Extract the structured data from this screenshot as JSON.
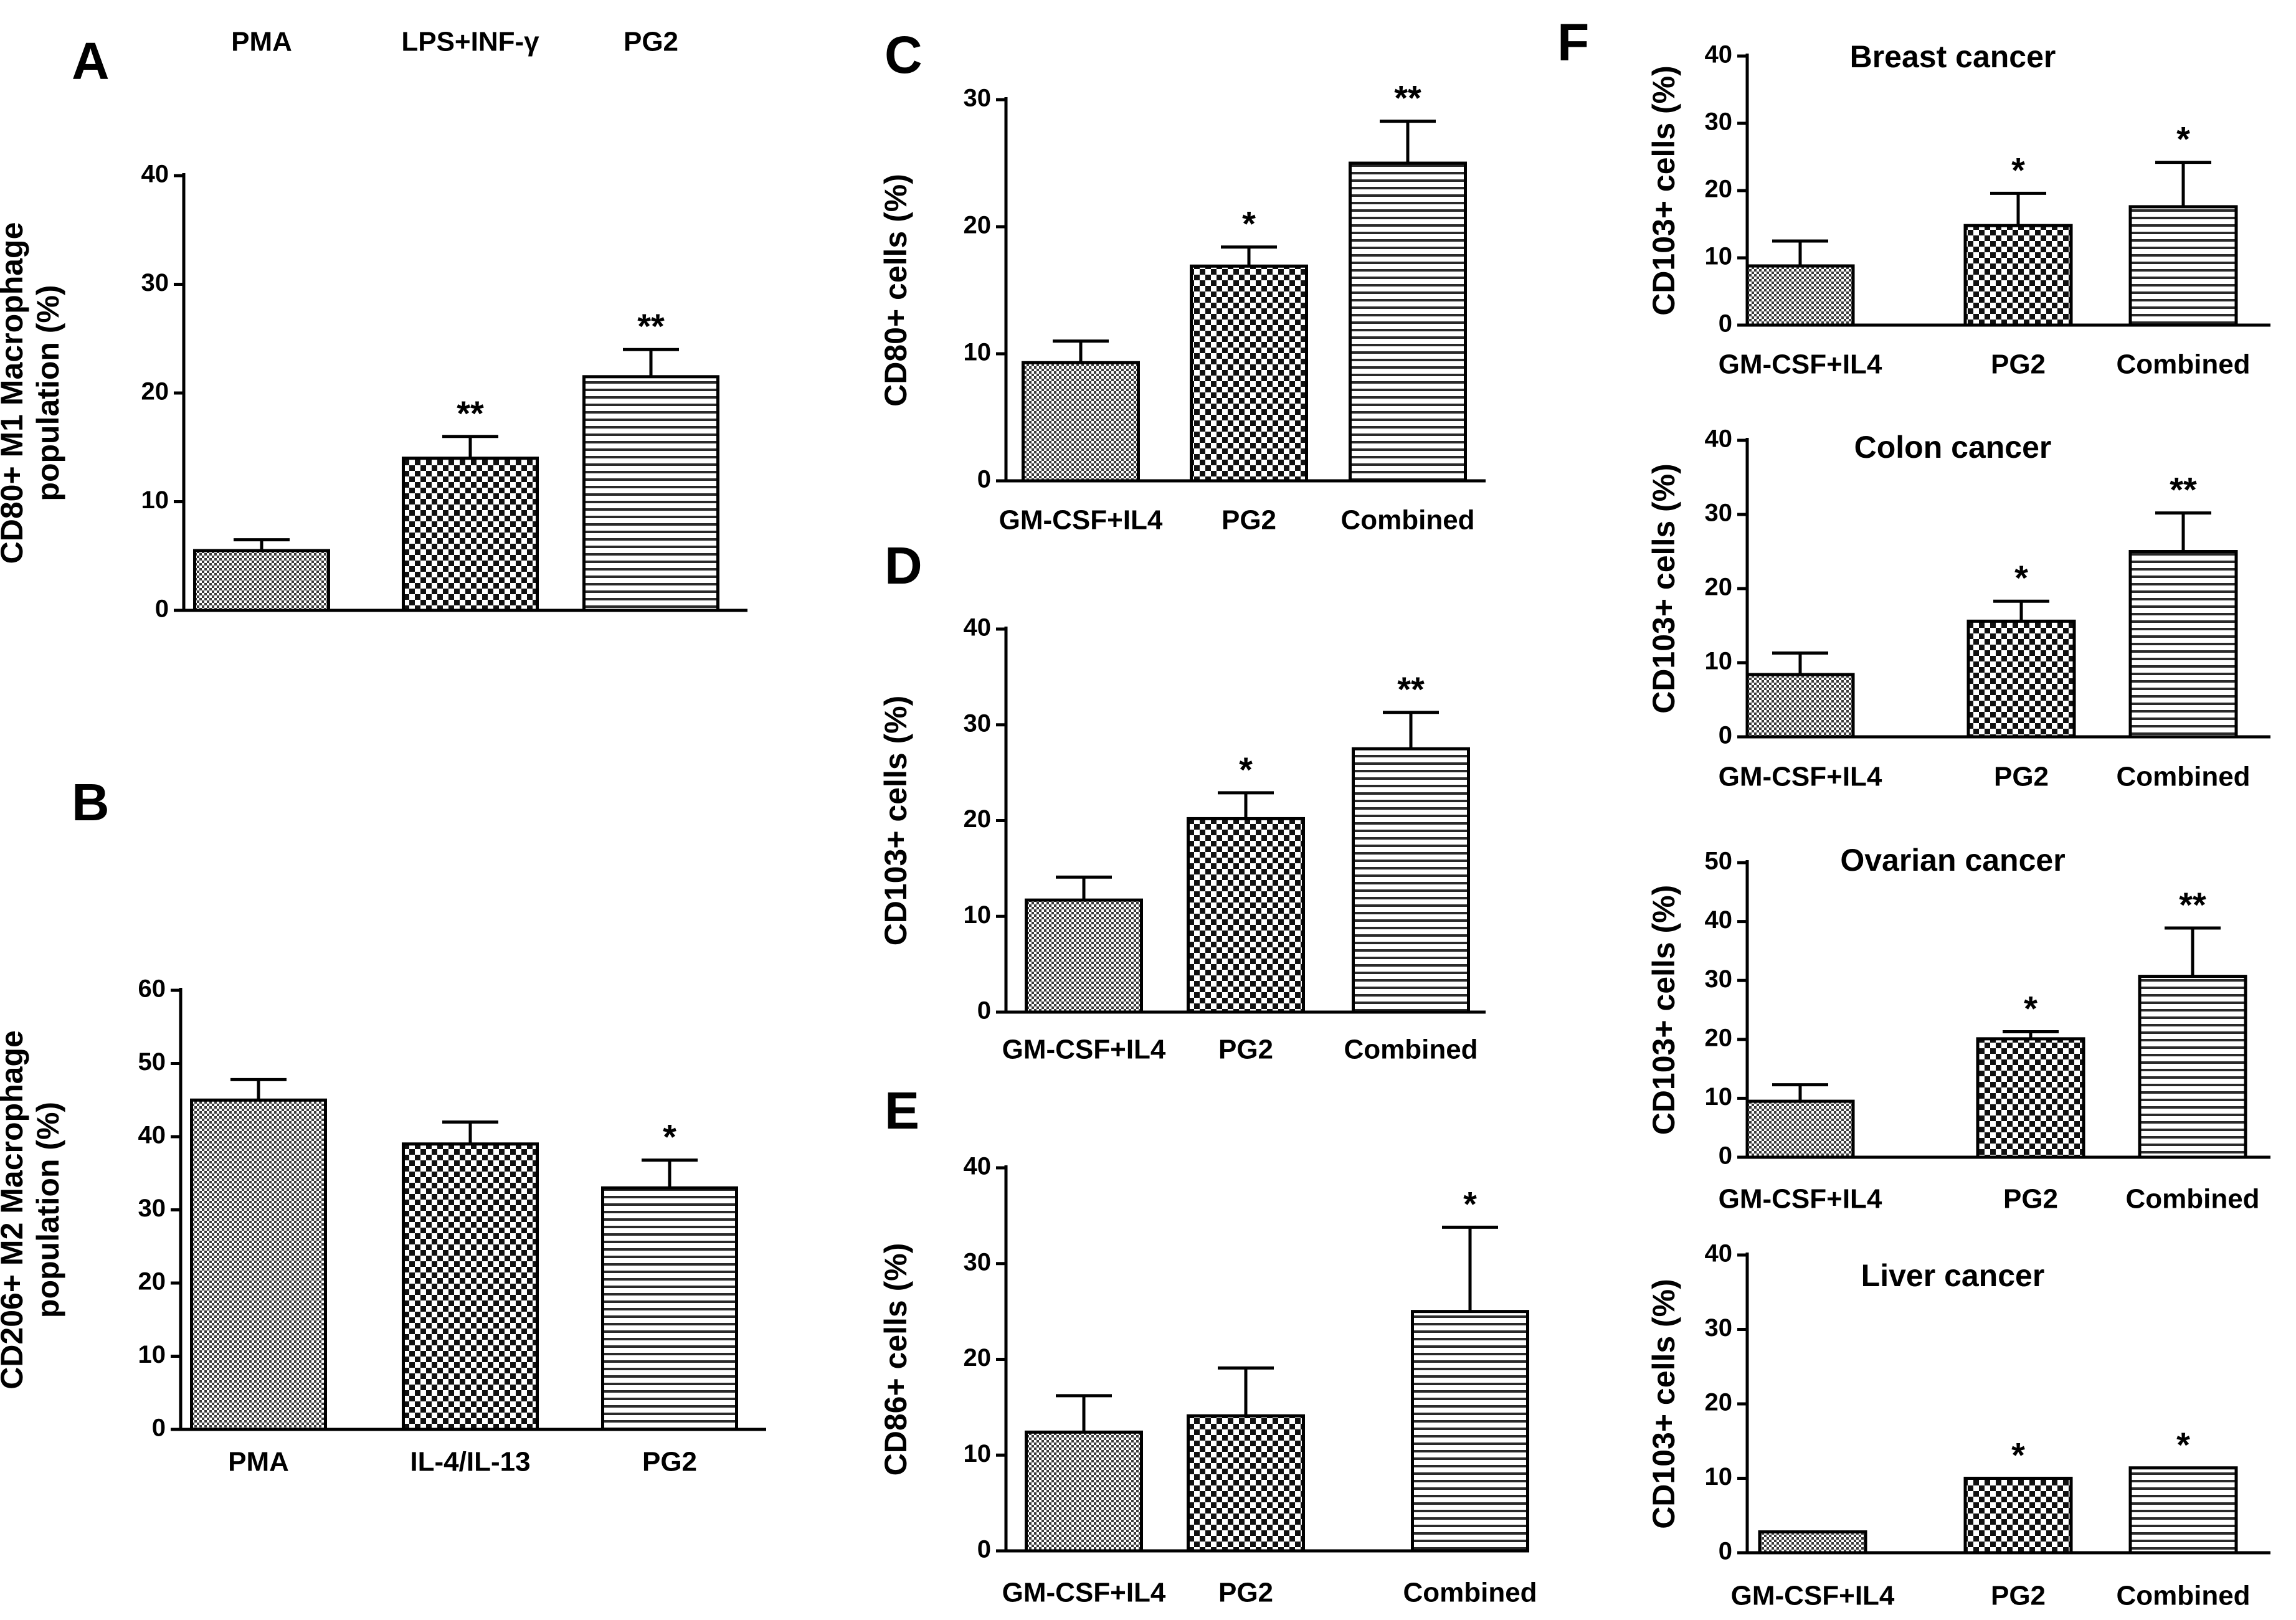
{
  "chart_data": [
    {
      "panel": "A",
      "type": "bar",
      "title": "",
      "ylabel_lines": [
        "CD80+ M1 Macrophage",
        "population (%)"
      ],
      "categories": [
        "PMA",
        "LPS+INF-γ",
        "PG2"
      ],
      "values": [
        5.5,
        14,
        21.5
      ],
      "errors": [
        1,
        2,
        2.5
      ],
      "significance": [
        "",
        "**",
        "**"
      ],
      "patterns": [
        "fine",
        "check",
        "hline"
      ],
      "ylim": [
        0,
        40
      ],
      "yticks": [
        "0",
        "10",
        "20",
        "30",
        "40"
      ]
    },
    {
      "panel": "B",
      "type": "bar",
      "title": "",
      "ylabel_lines": [
        "CD206+ M2 Macrophage",
        "population (%)"
      ],
      "categories": [
        "PMA",
        "IL-4/IL-13",
        "PG2"
      ],
      "values": [
        45,
        39,
        33
      ],
      "errors": [
        2.8,
        3,
        3.8
      ],
      "significance": [
        "",
        "",
        "*"
      ],
      "patterns": [
        "fine",
        "check",
        "hline"
      ],
      "ylim": [
        0,
        60
      ],
      "yticks": [
        "0",
        "10",
        "20",
        "30",
        "40",
        "50",
        "60"
      ]
    },
    {
      "panel": "C",
      "type": "bar",
      "title": "",
      "ylabel_lines": [
        "CD80+ cells (%)"
      ],
      "categories": [
        "GM-CSF+IL4",
        "PG2",
        "Combined"
      ],
      "values": [
        9.3,
        16.9,
        25
      ],
      "errors": [
        1.7,
        1.5,
        3.3
      ],
      "significance": [
        "",
        "*",
        "**"
      ],
      "patterns": [
        "fine",
        "check",
        "hline"
      ],
      "ylim": [
        0,
        30
      ],
      "yticks": [
        "0",
        "10",
        "20",
        "30"
      ]
    },
    {
      "panel": "D",
      "type": "bar",
      "title": "",
      "ylabel_lines": [
        "CD103+ cells (%)"
      ],
      "categories": [
        "GM-CSF+IL4",
        "PG2",
        "Combined"
      ],
      "values": [
        11.7,
        20.2,
        27.5
      ],
      "errors": [
        2.4,
        2.7,
        3.8
      ],
      "significance": [
        "",
        "*",
        "**"
      ],
      "patterns": [
        "fine",
        "check",
        "hline"
      ],
      "ylim": [
        0,
        40
      ],
      "yticks": [
        "0",
        "10",
        "20",
        "30",
        "40"
      ]
    },
    {
      "panel": "E",
      "type": "bar",
      "title": "",
      "ylabel_lines": [
        "CD86+ cells (%)"
      ],
      "categories": [
        "GM-CSF+IL4",
        "PG2",
        "Combined"
      ],
      "values": [
        12.4,
        14.1,
        25
      ],
      "errors": [
        3.8,
        5,
        8.8
      ],
      "significance": [
        "",
        "",
        "*"
      ],
      "patterns": [
        "fine",
        "check",
        "hline"
      ],
      "ylim": [
        0,
        40
      ],
      "yticks": [
        "0",
        "10",
        "20",
        "30",
        "40"
      ]
    },
    {
      "panel": "F",
      "type": "bar",
      "title": "Breast cancer",
      "ylabel_lines": [
        "CD103+ cells (%)"
      ],
      "categories": [
        "GM-CSF+IL4",
        "PG2",
        "Combined"
      ],
      "values": [
        8.8,
        14.8,
        17.6
      ],
      "errors": [
        3.7,
        4.8,
        6.6
      ],
      "significance": [
        "",
        "*",
        "*"
      ],
      "patterns": [
        "fine",
        "check",
        "hline"
      ],
      "ylim": [
        0,
        40
      ],
      "yticks": [
        "0",
        "10",
        "20",
        "30",
        "40"
      ]
    },
    {
      "panel": "",
      "type": "bar",
      "title": "Colon cancer",
      "ylabel_lines": [
        "CD103+ cells (%)"
      ],
      "categories": [
        "GM-CSF+IL4",
        "PG2",
        "Combined"
      ],
      "values": [
        8.4,
        15.6,
        25
      ],
      "errors": [
        2.9,
        2.7,
        5.2
      ],
      "significance": [
        "",
        "*",
        "**"
      ],
      "patterns": [
        "fine",
        "check",
        "hline"
      ],
      "ylim": [
        0,
        40
      ],
      "yticks": [
        "0",
        "10",
        "20",
        "30",
        "40"
      ]
    },
    {
      "panel": "",
      "type": "bar",
      "title": "Ovarian cancer",
      "ylabel_lines": [
        "CD103+ cells (%)"
      ],
      "categories": [
        "GM-CSF+IL4",
        "PG2",
        "Combined"
      ],
      "values": [
        9.5,
        20.1,
        30.7
      ],
      "errors": [
        2.8,
        1.2,
        8.2
      ],
      "significance": [
        "",
        "*",
        "**"
      ],
      "patterns": [
        "fine",
        "check",
        "hline"
      ],
      "ylim": [
        0,
        50
      ],
      "yticks": [
        "0",
        "10",
        "20",
        "30",
        "40",
        "50"
      ]
    },
    {
      "panel": "",
      "type": "bar",
      "title": "Liver cancer",
      "ylabel_lines": [
        "CD103+ cells (%)"
      ],
      "categories": [
        "GM-CSF+IL4",
        "PG2",
        "Combined"
      ],
      "values": [
        2.8,
        10,
        11.4
      ],
      "errors": [
        0,
        0,
        0
      ],
      "significance": [
        "",
        "*",
        "*"
      ],
      "patterns": [
        "fine",
        "check",
        "hline"
      ],
      "ylim": [
        0,
        40
      ],
      "yticks": [
        "0",
        "10",
        "20",
        "30",
        "40"
      ]
    }
  ]
}
